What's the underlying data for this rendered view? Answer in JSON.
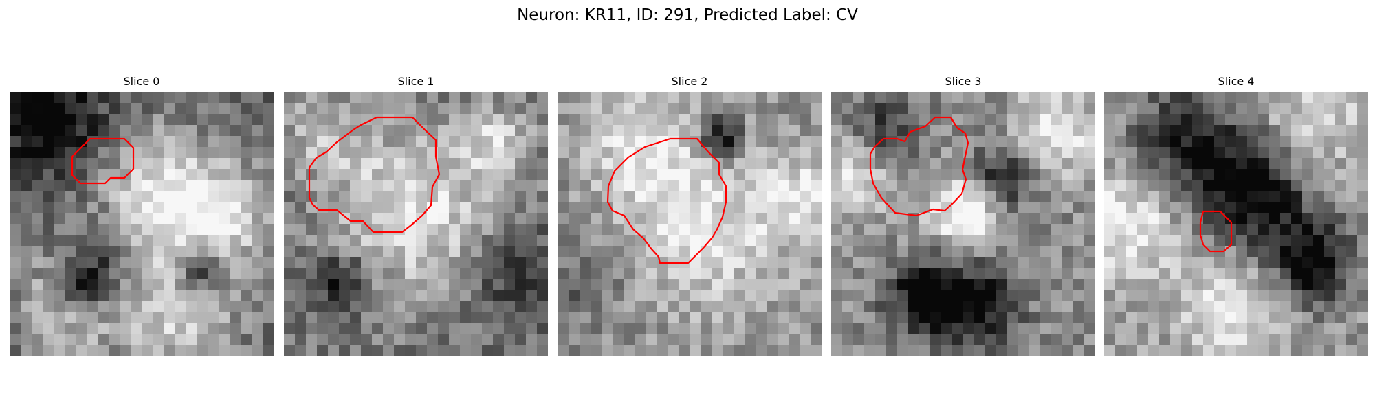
{
  "title": "Neuron: KR11, ID: 291, Predicted Label: CV",
  "colors": {
    "contour": "#ff0000"
  },
  "panels": [
    {
      "title": "Slice 0",
      "seed": 11,
      "blobs": [
        [
          0.58,
          0.4,
          0.17,
          0.55
        ],
        [
          0.25,
          0.78,
          0.15,
          0.45
        ],
        [
          0.82,
          0.48,
          0.14,
          0.35
        ],
        [
          0.15,
          0.12,
          0.14,
          -0.45
        ],
        [
          0.28,
          0.74,
          0.08,
          -0.55
        ],
        [
          0.65,
          0.85,
          0.15,
          0.4
        ],
        [
          0.72,
          0.68,
          0.06,
          -0.55
        ],
        [
          0.35,
          0.6,
          0.1,
          -0.3
        ]
      ],
      "base": 0.4
    },
    {
      "title": "Slice 1",
      "seed": 22,
      "blobs": [
        [
          0.48,
          0.45,
          0.22,
          0.45
        ],
        [
          0.8,
          0.2,
          0.1,
          0.35
        ],
        [
          0.15,
          0.15,
          0.12,
          0.25
        ],
        [
          0.22,
          0.72,
          0.08,
          -0.4
        ],
        [
          0.9,
          0.7,
          0.12,
          -0.3
        ]
      ],
      "base": 0.45
    },
    {
      "title": "Slice 2",
      "seed": 33,
      "blobs": [
        [
          0.57,
          0.48,
          0.24,
          0.35
        ],
        [
          0.62,
          0.17,
          0.06,
          -0.6
        ],
        [
          0.3,
          0.18,
          0.14,
          0.3
        ],
        [
          0.95,
          0.4,
          0.1,
          0.3
        ],
        [
          0.1,
          0.7,
          0.1,
          -0.2
        ]
      ],
      "base": 0.55
    },
    {
      "title": "Slice 3",
      "seed": 44,
      "blobs": [
        [
          0.52,
          0.46,
          0.1,
          0.55
        ],
        [
          0.65,
          0.33,
          0.08,
          -0.55
        ],
        [
          0.36,
          0.78,
          0.1,
          -0.55
        ],
        [
          0.1,
          0.3,
          0.12,
          0.35
        ],
        [
          0.85,
          0.15,
          0.12,
          0.35
        ],
        [
          0.2,
          0.15,
          0.1,
          -0.4
        ],
        [
          0.55,
          0.8,
          0.12,
          -0.45
        ]
      ],
      "base": 0.55
    },
    {
      "title": "Slice 4",
      "seed": 55,
      "blobs": [
        [
          0.55,
          0.38,
          0.15,
          -0.65
        ],
        [
          0.78,
          0.65,
          0.12,
          -0.6
        ],
        [
          0.3,
          0.18,
          0.14,
          -0.45
        ],
        [
          0.8,
          0.1,
          0.15,
          0.25
        ],
        [
          0.1,
          0.5,
          0.15,
          0.35
        ],
        [
          0.5,
          0.8,
          0.15,
          0.35
        ]
      ],
      "base": 0.6
    }
  ],
  "contours": [
    [
      [
        117,
        68
      ],
      [
        167,
        68
      ],
      [
        180,
        81
      ],
      [
        180,
        112
      ],
      [
        167,
        125
      ],
      [
        147,
        125
      ],
      [
        139,
        133
      ],
      [
        103,
        133
      ],
      [
        91,
        121
      ],
      [
        91,
        94
      ]
    ],
    [
      [
        135,
        37
      ],
      [
        187,
        37
      ],
      [
        205,
        55
      ],
      [
        221,
        70
      ],
      [
        221,
        94
      ],
      [
        226,
        120
      ],
      [
        216,
        138
      ],
      [
        214,
        165
      ],
      [
        201,
        180
      ],
      [
        185,
        194
      ],
      [
        172,
        204
      ],
      [
        130,
        204
      ],
      [
        115,
        188
      ],
      [
        97,
        188
      ],
      [
        77,
        172
      ],
      [
        51,
        172
      ],
      [
        42,
        164
      ],
      [
        37,
        154
      ],
      [
        37,
        110
      ],
      [
        47,
        96
      ],
      [
        62,
        87
      ],
      [
        77,
        73
      ],
      [
        101,
        55
      ],
      [
        112,
        48
      ]
    ],
    [
      [
        164,
        68
      ],
      [
        203,
        68
      ],
      [
        219,
        87
      ],
      [
        235,
        103
      ],
      [
        235,
        120
      ],
      [
        245,
        137
      ],
      [
        245,
        160
      ],
      [
        240,
        182
      ],
      [
        232,
        200
      ],
      [
        225,
        212
      ],
      [
        212,
        227
      ],
      [
        190,
        249
      ],
      [
        149,
        249
      ],
      [
        147,
        240
      ],
      [
        137,
        229
      ],
      [
        125,
        213
      ],
      [
        110,
        200
      ],
      [
        97,
        180
      ],
      [
        80,
        173
      ],
      [
        73,
        160
      ],
      [
        74,
        137
      ],
      [
        83,
        115
      ],
      [
        103,
        95
      ],
      [
        127,
        80
      ]
    ],
    [
      [
        151,
        37
      ],
      [
        174,
        37
      ],
      [
        183,
        52
      ],
      [
        195,
        60
      ],
      [
        199,
        74
      ],
      [
        195,
        93
      ],
      [
        191,
        113
      ],
      [
        196,
        127
      ],
      [
        190,
        148
      ],
      [
        177,
        162
      ],
      [
        165,
        173
      ],
      [
        148,
        171
      ],
      [
        124,
        180
      ],
      [
        93,
        176
      ],
      [
        73,
        154
      ],
      [
        61,
        133
      ],
      [
        57,
        112
      ],
      [
        57,
        90
      ],
      [
        63,
        80
      ],
      [
        76,
        68
      ],
      [
        96,
        68
      ],
      [
        107,
        72
      ],
      [
        115,
        58
      ],
      [
        137,
        50
      ]
    ],
    [
      [
        144,
        174
      ],
      [
        169,
        174
      ],
      [
        179,
        184
      ],
      [
        185,
        190
      ],
      [
        185,
        222
      ],
      [
        174,
        232
      ],
      [
        154,
        232
      ],
      [
        144,
        222
      ],
      [
        140,
        208
      ],
      [
        140,
        190
      ]
    ]
  ]
}
